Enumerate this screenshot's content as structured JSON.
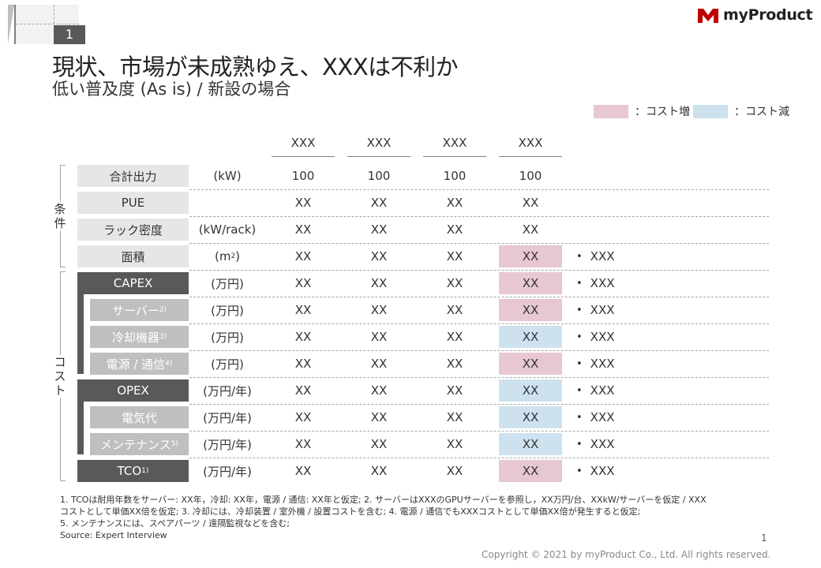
{
  "tracker": {
    "number": "1"
  },
  "logo": {
    "text": "myProduct"
  },
  "title": "現状、市場が未成熟ゆえ、XXXは不利か",
  "subtitle": "低い普及度 (As is) / 新設の場合",
  "legend": [
    {
      "label": "：コスト増",
      "color": "#e6c7d2"
    },
    {
      "label": "：コスト減",
      "color": "#cde2ee"
    }
  ],
  "columns": [
    "XXX",
    "XXX",
    "XXX",
    "XXX"
  ],
  "groups": {
    "conditions": "条件",
    "cost": "コスト"
  },
  "rows": [
    {
      "label": "合計出力",
      "sup": "",
      "unit": "(kW)",
      "unit_sup": "",
      "unit_tail": "",
      "cells": [
        "100",
        "100",
        "100",
        "100"
      ],
      "highlight": "",
      "note": ""
    },
    {
      "label": "PUE",
      "sup": "",
      "unit": "",
      "unit_sup": "",
      "unit_tail": "",
      "cells": [
        "XX",
        "XX",
        "XX",
        "XX"
      ],
      "highlight": "",
      "note": ""
    },
    {
      "label": "ラック密度",
      "sup": "",
      "unit": "(kW/rack)",
      "unit_sup": "",
      "unit_tail": "",
      "cells": [
        "XX",
        "XX",
        "XX",
        "XX"
      ],
      "highlight": "",
      "note": ""
    },
    {
      "label": "面積",
      "sup": "",
      "unit": "(m",
      "unit_sup": "2",
      "unit_tail": ")",
      "cells": [
        "XX",
        "XX",
        "XX",
        "XX"
      ],
      "highlight": "pink",
      "note": "XXX"
    },
    {
      "label": "CAPEX",
      "sup": "",
      "unit": "(万円)",
      "unit_sup": "",
      "unit_tail": "",
      "cells": [
        "XX",
        "XX",
        "XX",
        "XX"
      ],
      "highlight": "pink",
      "note": "XXX"
    },
    {
      "label": "サーバー",
      "sup": "2)",
      "unit": "(万円)",
      "unit_sup": "",
      "unit_tail": "",
      "cells": [
        "XX",
        "XX",
        "XX",
        "XX"
      ],
      "highlight": "pink",
      "note": "XXX"
    },
    {
      "label": "冷却機器",
      "sup": "3)",
      "unit": "(万円)",
      "unit_sup": "",
      "unit_tail": "",
      "cells": [
        "XX",
        "XX",
        "XX",
        "XX"
      ],
      "highlight": "blue",
      "note": "XXX"
    },
    {
      "label": "電源 / 通信",
      "sup": "4)",
      "unit": "(万円)",
      "unit_sup": "",
      "unit_tail": "",
      "cells": [
        "XX",
        "XX",
        "XX",
        "XX"
      ],
      "highlight": "pink",
      "note": "XXX"
    },
    {
      "label": "OPEX",
      "sup": "",
      "unit": "(万円/年)",
      "unit_sup": "",
      "unit_tail": "",
      "cells": [
        "XX",
        "XX",
        "XX",
        "XX"
      ],
      "highlight": "blue",
      "note": "XXX"
    },
    {
      "label": "電気代",
      "sup": "",
      "unit": "(万円/年)",
      "unit_sup": "",
      "unit_tail": "",
      "cells": [
        "XX",
        "XX",
        "XX",
        "XX"
      ],
      "highlight": "blue",
      "note": "XXX"
    },
    {
      "label": "メンテナンス",
      "sup": "5)",
      "unit": "(万円/年)",
      "unit_sup": "",
      "unit_tail": "",
      "cells": [
        "XX",
        "XX",
        "XX",
        "XX"
      ],
      "highlight": "blue",
      "note": "XXX"
    },
    {
      "label": "TCO",
      "sup": "1)",
      "unit": "(万円/年)",
      "unit_sup": "",
      "unit_tail": "",
      "cells": [
        "XX",
        "XX",
        "XX",
        "XX"
      ],
      "highlight": "pink",
      "note": "XXX"
    }
  ],
  "footnotes": [
    "1. TCOは耐用年数をサーバー:  XX年，冷却: XX年，電源 / 通信: XX年と仮定;  2. サーバーはXXXのGPUサーバーを参照し，XX万円/台、XXkW/サーバーを仮定  / XXX",
    "コストとして単価XX倍を仮定;  3. 冷却には、冷却装置 / 室外機 / 設置コストを含む; 4. 電源 / 通信でもXXXコストとして単価XX倍が発生すると仮定;",
    "5. メンテナンスには、スペアパーツ / 遠隔監視などを含む;",
    "Source: Expert Interview"
  ],
  "page_number": "1",
  "copyright": "Copyright © 2021 by myProduct Co., Ltd.  All rights reserved."
}
